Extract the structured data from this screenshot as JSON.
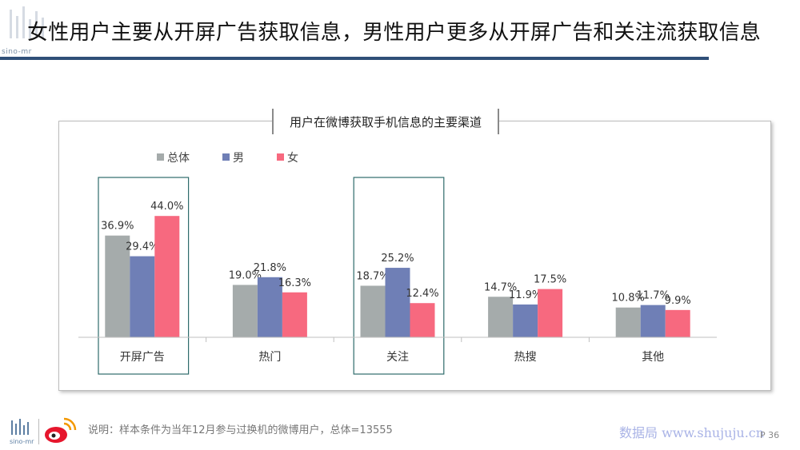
{
  "header": {
    "title": "女性用户主要从开屏广告获取信息，男性用户更多从开屏广告和关注流获取信息",
    "logo_text": "sino-mr"
  },
  "chart_data": {
    "type": "bar",
    "title": "用户在微博获取手机信息的主要渠道",
    "categories": [
      "开屏广告",
      "热门",
      "关注",
      "热搜",
      "其他"
    ],
    "series": [
      {
        "name": "总体",
        "color": "#a5abab",
        "values": [
          36.9,
          19.0,
          18.7,
          14.7,
          10.8
        ],
        "labels": [
          "36.9%",
          "19.0%",
          "18.7%",
          "14.7%",
          "10.8%"
        ]
      },
      {
        "name": "男",
        "color": "#6f7fb6",
        "values": [
          29.4,
          21.8,
          25.2,
          11.9,
          11.7
        ],
        "labels": [
          "29.4%",
          "21.8%",
          "25.2%",
          "11.9%",
          "11.7%"
        ]
      },
      {
        "name": "女",
        "color": "#f7697f",
        "values": [
          44.0,
          16.3,
          12.4,
          17.5,
          9.9
        ],
        "labels": [
          "44.0%",
          "16.3%",
          "12.4%",
          "17.5%",
          "9.9%"
        ]
      }
    ],
    "highlighted_categories": [
      "开屏广告",
      "关注"
    ],
    "legend_position": "top-left",
    "grid": false,
    "ylim": [
      0,
      50
    ]
  },
  "footer": {
    "note": "说明：样本条件为当年12月参与过换机的微博用户，总体=13555",
    "watermark": "数据局 www.shujuju.cn",
    "page": "P 36"
  },
  "colors": {
    "title_rule": "#2f4f78",
    "highlight_box": "#2e6b6b"
  }
}
